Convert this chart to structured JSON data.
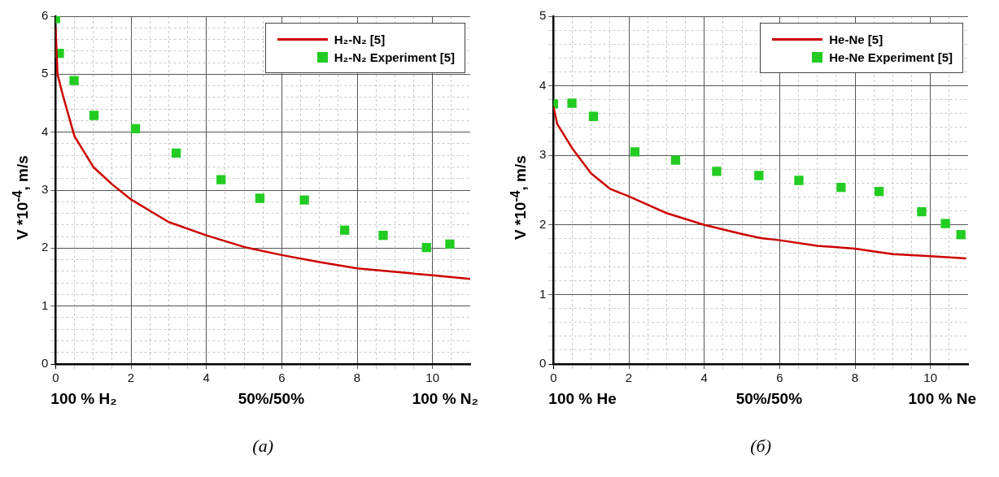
{
  "chart_data": [
    {
      "type": "scatter",
      "ylabel": "V *10$^{-4}$, m/s",
      "annotations": [
        "100 % H₂",
        "50%/50%",
        "100 % N₂",
        "(a)"
      ],
      "xlim": [
        0,
        11
      ],
      "ylim": [
        0,
        6
      ],
      "xticks": [
        0,
        {
          "value": 0.5,
          "label": null
        },
        {
          "value": 1,
          "label": null
        },
        {
          "value": 1.5,
          "label": null
        },
        2,
        {
          "value": 2.5,
          "label": null
        },
        {
          "value": 3,
          "label": null
        },
        {
          "value": 3.5,
          "label": null
        },
        4,
        {
          "value": 4.5,
          "label": null
        },
        {
          "value": 5,
          "label": null
        },
        {
          "value": 5.5,
          "label": null
        },
        6,
        {
          "value": 6.5,
          "label": null
        },
        {
          "value": 7,
          "label": null
        },
        {
          "value": 7.5,
          "label": null
        },
        8,
        {
          "value": 8.5,
          "label": null
        },
        {
          "value": 9,
          "label": null
        },
        {
          "value": 9.5,
          "label": null
        },
        10,
        {
          "value": 10.5,
          "label": null
        }
      ],
      "yticks": [
        0,
        {
          "value": 0.2,
          "label": null
        },
        {
          "value": 0.4,
          "label": null
        },
        {
          "value": 0.6,
          "label": null
        },
        {
          "value": 0.8,
          "label": null
        },
        1,
        {
          "value": 1.2,
          "label": null
        },
        {
          "value": 1.4,
          "label": null
        },
        {
          "value": 1.6,
          "label": null
        },
        {
          "value": 1.8,
          "label": null
        },
        2,
        {
          "value": 2.2,
          "label": null
        },
        {
          "value": 2.4,
          "label": null
        },
        {
          "value": 2.6,
          "label": null
        },
        {
          "value": 2.8,
          "label": null
        },
        3,
        {
          "value": 3.2,
          "label": null
        },
        {
          "value": 3.4,
          "label": null
        },
        {
          "value": 3.6,
          "label": null
        },
        {
          "value": 3.8,
          "label": null
        },
        4,
        {
          "value": 4.2,
          "label": null
        },
        {
          "value": 4.4,
          "label": null
        },
        {
          "value": 4.6,
          "label": null
        },
        {
          "value": 4.8,
          "label": null
        },
        5,
        {
          "value": 5.2,
          "label": null
        },
        {
          "value": 5.4,
          "label": null
        },
        {
          "value": 5.6,
          "label": null
        },
        {
          "value": 5.8,
          "label": null
        },
        6
      ],
      "grid": true,
      "legend": "top right",
      "series": [
        {
          "name": "H₂-N₂ [5]",
          "type": "line",
          "color": "#cc0000",
          "marker": "none",
          "x": [
            0,
            0.05,
            0.2,
            0.5,
            1,
            1.5,
            2,
            3,
            4,
            5,
            6,
            7,
            8,
            9,
            10,
            11
          ],
          "values": [
            5.8,
            5.0,
            4.62,
            3.93,
            3.4,
            3.1,
            2.84,
            2.45,
            2.22,
            2.02,
            1.88,
            1.76,
            1.65,
            1.59,
            1.53,
            1.47
          ]
        },
        {
          "name": "H₂-N₂ Experiment [5]",
          "type": "scatter",
          "color": "#22cc22",
          "marker": "square",
          "x": [
            0,
            0.1,
            0.49,
            1.02,
            2.12,
            3.2,
            4.39,
            5.42,
            6.6,
            7.67,
            8.69,
            9.84,
            10.46
          ],
          "values": [
            5.96,
            5.36,
            4.89,
            4.29,
            4.06,
            3.64,
            3.18,
            2.86,
            2.83,
            2.31,
            2.22,
            2.01,
            2.07
          ]
        }
      ]
    },
    {
      "type": "scatter",
      "ylabel": "V *10$^{-4}$, m/s",
      "annotations": [
        "100 % He",
        "50%/50%",
        "100 % Ne",
        "(б)"
      ],
      "xlim": [
        0,
        11
      ],
      "ylim": [
        0,
        5
      ],
      "xticks": [
        0,
        {
          "value": 0.5,
          "label": null
        },
        {
          "value": 1,
          "label": null
        },
        {
          "value": 1.5,
          "label": null
        },
        2,
        {
          "value": 2.5,
          "label": null
        },
        {
          "value": 3,
          "label": null
        },
        {
          "value": 3.5,
          "label": null
        },
        4,
        {
          "value": 4.5,
          "label": null
        },
        {
          "value": 5,
          "label": null
        },
        {
          "value": 5.5,
          "label": null
        },
        6,
        {
          "value": 6.5,
          "label": null
        },
        {
          "value": 7,
          "label": null
        },
        {
          "value": 7.5,
          "label": null
        },
        8,
        {
          "value": 8.5,
          "label": null
        },
        {
          "value": 9,
          "label": null
        },
        {
          "value": 9.5,
          "label": null
        },
        10,
        {
          "value": 10.5,
          "label": null
        }
      ],
      "yticks": [
        0,
        {
          "value": 0.2,
          "label": null
        },
        {
          "value": 0.4,
          "label": null
        },
        {
          "value": 0.6,
          "label": null
        },
        {
          "value": 0.8,
          "label": null
        },
        1,
        {
          "value": 1.2,
          "label": null
        },
        {
          "value": 1.4,
          "label": null
        },
        {
          "value": 1.6,
          "label": null
        },
        {
          "value": 1.8,
          "label": null
        },
        2,
        {
          "value": 2.2,
          "label": null
        },
        {
          "value": 2.4,
          "label": null
        },
        {
          "value": 2.6,
          "label": null
        },
        {
          "value": 2.8,
          "label": null
        },
        3,
        {
          "value": 3.2,
          "label": null
        },
        {
          "value": 3.4,
          "label": null
        },
        {
          "value": 3.6,
          "label": null
        },
        {
          "value": 3.8,
          "label": null
        },
        4,
        {
          "value": 4.2,
          "label": null
        },
        {
          "value": 4.4,
          "label": null
        },
        {
          "value": 4.6,
          "label": null
        },
        {
          "value": 4.8,
          "label": null
        },
        5
      ],
      "grid": true,
      "legend": "top right",
      "series": [
        {
          "name": "He-Ne [5]",
          "type": "line",
          "color": "#cc0000",
          "marker": "none",
          "x": [
            0,
            0.1,
            0.5,
            1,
            1.5,
            2,
            3,
            4,
            5,
            5.5,
            6,
            7,
            8,
            9,
            10,
            10.95
          ],
          "values": [
            3.7,
            3.45,
            3.1,
            2.74,
            2.52,
            2.41,
            2.17,
            2.0,
            1.87,
            1.81,
            1.78,
            1.7,
            1.66,
            1.58,
            1.55,
            1.52
          ]
        },
        {
          "name": "He-Ne Experiment [5]",
          "type": "scatter",
          "color": "#22cc22",
          "marker": "square",
          "x": [
            0,
            0.49,
            1.06,
            2.16,
            3.24,
            4.33,
            5.45,
            6.51,
            7.63,
            8.64,
            9.77,
            10.4,
            10.81
          ],
          "values": [
            3.74,
            3.75,
            3.56,
            3.05,
            2.93,
            2.77,
            2.71,
            2.64,
            2.54,
            2.48,
            2.19,
            2.02,
            1.86
          ]
        }
      ]
    }
  ]
}
